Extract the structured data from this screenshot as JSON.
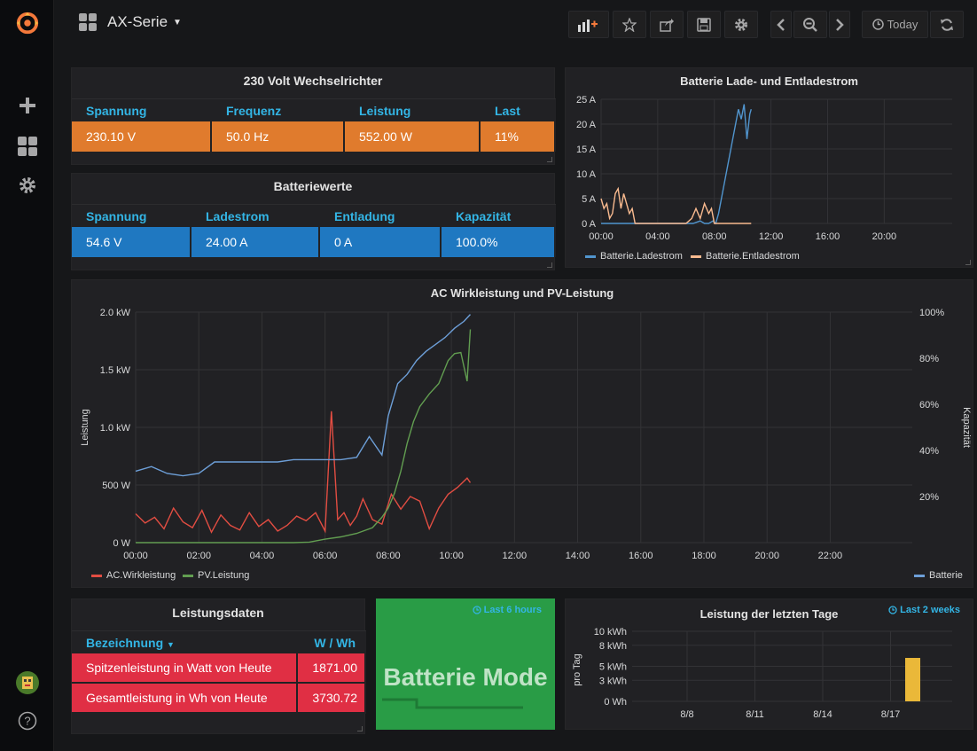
{
  "header": {
    "dashboard_title": "AX-Serie",
    "today_label": "Today"
  },
  "inverter": {
    "title": "230 Volt Wechselrichter",
    "columns": [
      "Spannung",
      "Frequenz",
      "Leistung",
      "Last"
    ],
    "values": [
      "230.10 V",
      "50.0 Hz",
      "552.00 W",
      "11%"
    ],
    "color": "#e07b2d"
  },
  "battery": {
    "title": "Batteriewerte",
    "columns": [
      "Spannung",
      "Ladestrom",
      "Entladung",
      "Kapazität"
    ],
    "values": [
      "54.6 V",
      "24.00 A",
      "0 A",
      "100.0%"
    ],
    "color": "#1f78c1"
  },
  "power": {
    "title": "Leistungsdaten",
    "col_name": "Bezeichnung",
    "col_value": "W / Wh",
    "rows": [
      {
        "name": "Spitzenleistung in Watt von Heute",
        "value": "1871.00"
      },
      {
        "name": "Gesamtleistung in Wh von Heute",
        "value": "3730.72"
      }
    ],
    "color": "#e02f44"
  },
  "mode": {
    "time_hint": "Last 6 hours",
    "text": "Batterie Mode",
    "color": "#299c46"
  },
  "chart_data": [
    {
      "type": "line",
      "title": "Batterie Lade- und Entladestrom",
      "x_ticks": [
        "00:00",
        "04:00",
        "08:00",
        "12:00",
        "16:00",
        "20:00"
      ],
      "y_ticks": [
        "0 A",
        "5 A",
        "10 A",
        "15 A",
        "20 A",
        "25 A"
      ],
      "ylim": [
        0,
        25
      ],
      "xlim_hours": [
        0,
        24.8
      ],
      "series": [
        {
          "name": "Batterie.Ladestrom",
          "color": "#5195ce",
          "x": [
            0,
            6.0,
            6.5,
            7.0,
            7.3,
            7.6,
            7.9,
            8.1,
            8.3,
            8.5,
            8.7,
            8.9,
            9.1,
            9.3,
            9.5,
            9.7,
            9.9,
            10.1,
            10.3,
            10.5,
            10.6
          ],
          "y": [
            0,
            0,
            0,
            0.5,
            0,
            0,
            0.5,
            0,
            2,
            5,
            8,
            11,
            14,
            17,
            20,
            23,
            21,
            24,
            17,
            22,
            23
          ]
        },
        {
          "name": "Batterie.Entladestrom",
          "color": "#f9ba8f",
          "x": [
            0,
            0.2,
            0.4,
            0.6,
            0.8,
            1.0,
            1.2,
            1.4,
            1.6,
            1.8,
            2.0,
            2.2,
            2.4,
            4.0,
            6.0,
            6.4,
            6.7,
            7.0,
            7.3,
            7.6,
            7.8,
            8.0,
            10.6
          ],
          "y": [
            5,
            3,
            4,
            1,
            2,
            6,
            7,
            3,
            6,
            4,
            2,
            3,
            0,
            0,
            0,
            1,
            3,
            1,
            4,
            2,
            3,
            0,
            0
          ]
        }
      ]
    },
    {
      "type": "line",
      "title": "AC Wirkleistung und PV-Leistung",
      "ylabel": "Leistung",
      "y2label": "Kapazität",
      "x_ticks": [
        "00:00",
        "02:00",
        "04:00",
        "06:00",
        "08:00",
        "10:00",
        "12:00",
        "14:00",
        "16:00",
        "18:00",
        "20:00",
        "22:00"
      ],
      "y_ticks": [
        "0 W",
        "500 W",
        "1.0 kW",
        "1.5 kW",
        "2.0 kW"
      ],
      "y2_ticks": [
        "20%",
        "40%",
        "60%",
        "80%",
        "100%"
      ],
      "ylim": [
        0,
        2000
      ],
      "y2lim": [
        0,
        100
      ],
      "xlim_hours": [
        0,
        24.6
      ],
      "series": [
        {
          "name": "AC.Wirkleistung",
          "color": "#e24d42",
          "axis": "left",
          "x": [
            0,
            0.3,
            0.6,
            0.9,
            1.2,
            1.5,
            1.8,
            2.1,
            2.4,
            2.7,
            3.0,
            3.3,
            3.6,
            3.9,
            4.2,
            4.5,
            4.8,
            5.1,
            5.4,
            5.7,
            6.0,
            6.2,
            6.4,
            6.6,
            6.8,
            7.0,
            7.2,
            7.5,
            7.8,
            8.1,
            8.4,
            8.7,
            9.0,
            9.3,
            9.6,
            9.9,
            10.2,
            10.5,
            10.6
          ],
          "y": [
            250,
            170,
            220,
            120,
            300,
            180,
            130,
            280,
            90,
            240,
            150,
            110,
            260,
            140,
            200,
            100,
            150,
            230,
            190,
            260,
            100,
            1140,
            200,
            260,
            150,
            230,
            380,
            200,
            160,
            420,
            290,
            400,
            360,
            120,
            300,
            420,
            480,
            560,
            520
          ]
        },
        {
          "name": "PV.Leistung",
          "color": "#629e51",
          "axis": "left",
          "x": [
            0,
            1,
            2,
            3,
            4,
            5,
            5.5,
            6.0,
            6.5,
            7.0,
            7.5,
            7.8,
            8.0,
            8.2,
            8.4,
            8.6,
            8.8,
            9.0,
            9.3,
            9.6,
            9.9,
            10.1,
            10.3,
            10.5,
            10.6
          ],
          "y": [
            0,
            0,
            0,
            0,
            0,
            0,
            5,
            30,
            50,
            80,
            130,
            220,
            300,
            430,
            620,
            860,
            1050,
            1180,
            1290,
            1380,
            1580,
            1640,
            1650,
            1400,
            1850
          ]
        },
        {
          "name": "Batterie",
          "color": "#6d9fd8",
          "axis": "right",
          "x": [
            0,
            0.5,
            1.0,
            1.5,
            2.0,
            2.5,
            3.0,
            3.5,
            4.0,
            4.5,
            5.0,
            5.5,
            6.0,
            6.5,
            7.0,
            7.4,
            7.8,
            8.0,
            8.3,
            8.6,
            8.9,
            9.2,
            9.5,
            9.8,
            10.1,
            10.4,
            10.6
          ],
          "y": [
            31,
            33,
            30,
            29,
            30,
            35,
            35,
            35,
            35,
            35,
            36,
            36,
            36,
            36,
            37,
            46,
            38,
            55,
            69,
            73,
            79,
            83,
            86,
            89,
            93,
            96,
            99
          ]
        }
      ]
    },
    {
      "type": "bar",
      "title": "Leistung der letzten Tage",
      "time_hint": "Last 2 weeks",
      "ylabel": "pro Tag",
      "x_ticks": [
        "8/8",
        "8/11",
        "8/14",
        "8/17"
      ],
      "y_ticks": [
        "0 Wh",
        "3 kWh",
        "5 kWh",
        "8 kWh",
        "10 kWh"
      ],
      "ylim": [
        0,
        10
      ],
      "categories": [
        "8/18"
      ],
      "values": [
        6.2
      ],
      "color": "#eab839"
    }
  ]
}
